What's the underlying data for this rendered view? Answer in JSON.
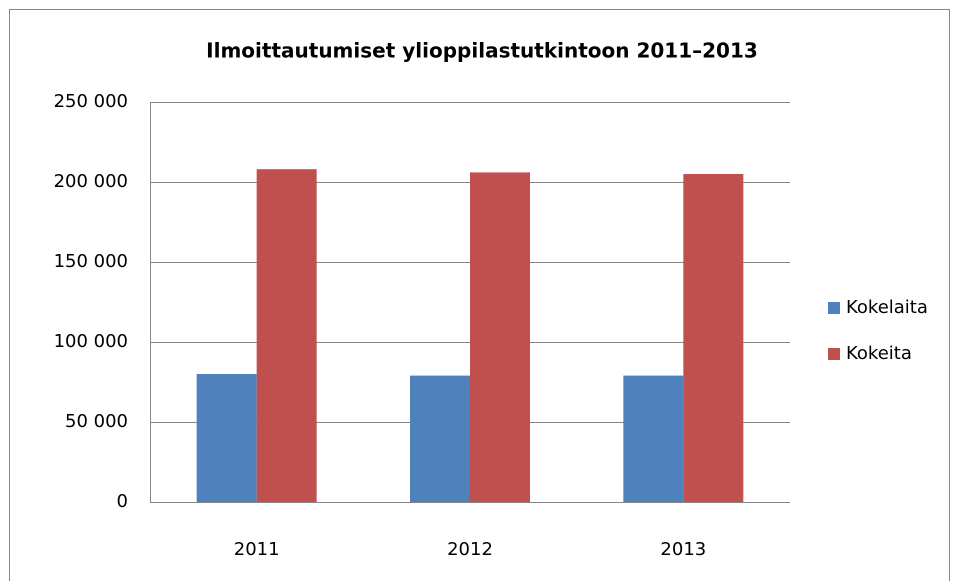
{
  "chart_data": {
    "type": "bar",
    "title": "Ilmoittautumiset ylioppilastutkintoon 2011–2013",
    "categories": [
      "2011",
      "2012",
      "2013"
    ],
    "series": [
      {
        "name": "Kokelaita",
        "color": "#4f81bd",
        "values": [
          80000,
          79000,
          79000
        ]
      },
      {
        "name": "Kokeita",
        "color": "#c0504d",
        "values": [
          208000,
          206000,
          205000
        ]
      }
    ],
    "ylim": [
      0,
      250000
    ],
    "yticks": [
      0,
      {
        "value": 50000,
        "label": "50 000"
      },
      {
        "value": 100000,
        "label": "100 000"
      },
      {
        "value": 150000,
        "label": "150 000"
      },
      {
        "value": 200000,
        "label": "200 000"
      },
      {
        "value": 250000,
        "label": "250 000"
      }
    ],
    "grid": true,
    "legend": "right"
  }
}
